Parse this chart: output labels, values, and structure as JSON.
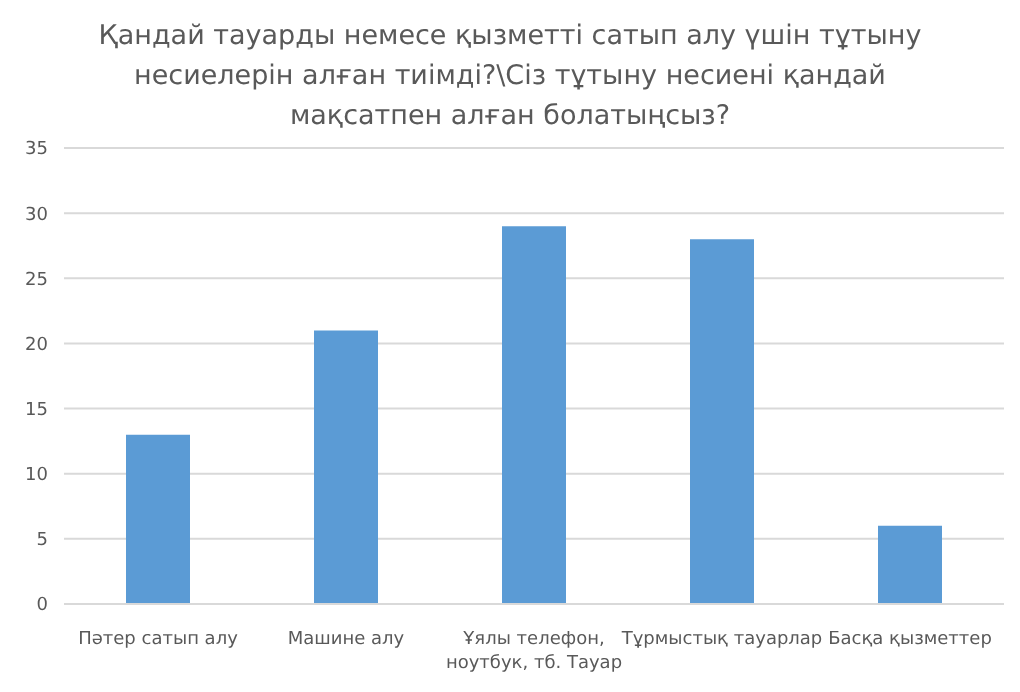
{
  "chart_data": {
    "type": "bar",
    "title": "Қандай тауарды немесе қызметті сатып алу үшін тұтыну несиелерін алған тиімді?\\Сіз тұтыну несиені қандай мақсатпен алған болатыңсыз?",
    "categories": [
      "Пәтер сатып алу",
      "Машине алу",
      "Ұялы телефон, ноутбук, тб. Тауар",
      "Тұрмыстық тауарлар",
      "Басқа қызметтер"
    ],
    "values": [
      13,
      21,
      29,
      28,
      6
    ],
    "color": "#5b9bd5",
    "ylim": [
      0,
      35
    ],
    "yticks": [
      0,
      5,
      10,
      15,
      20,
      25,
      30,
      35
    ],
    "grid": "y"
  }
}
